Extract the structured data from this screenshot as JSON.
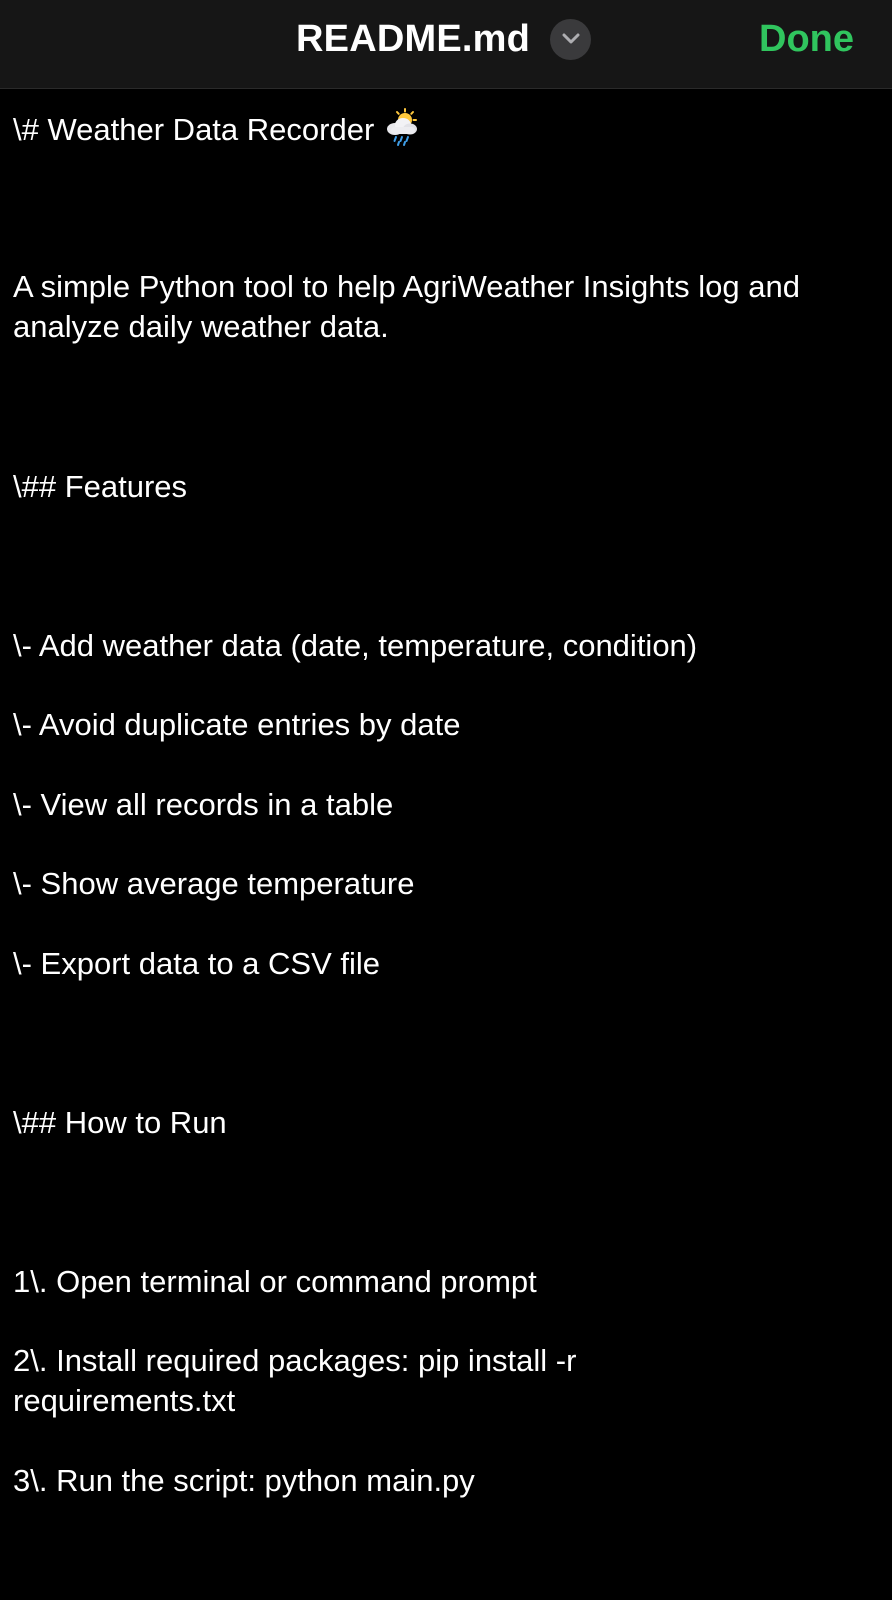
{
  "nav": {
    "title": "README.md",
    "done_label": "Done",
    "menu_icon": "chevron-down-icon",
    "accent_color": "#30c55e"
  },
  "editor": {
    "lines": [
      {
        "text": "\\# Weather Data Recorder",
        "icon": "sun-behind-rain-cloud-emoji"
      },
      {
        "text": "A simple Python tool to help AgriWeather Insights log and analyze daily weather data."
      },
      {
        "text": "\\## Features"
      },
      {
        "text": "\\- Add weather data (date, temperature, condition)"
      },
      {
        "text": "\\- Avoid duplicate entries by date"
      },
      {
        "text": "\\- View all records in a table"
      },
      {
        "text": "\\- Show average temperature"
      },
      {
        "text": "\\- Export data to a CSV file"
      },
      {
        "text": "\\## How to Run"
      },
      {
        "text": "1\\. Open terminal or command prompt"
      },
      {
        "text": "2\\. Install required packages: pip install -r requirements.txt"
      },
      {
        "text": "3\\. Run the script: python main.py"
      }
    ]
  }
}
